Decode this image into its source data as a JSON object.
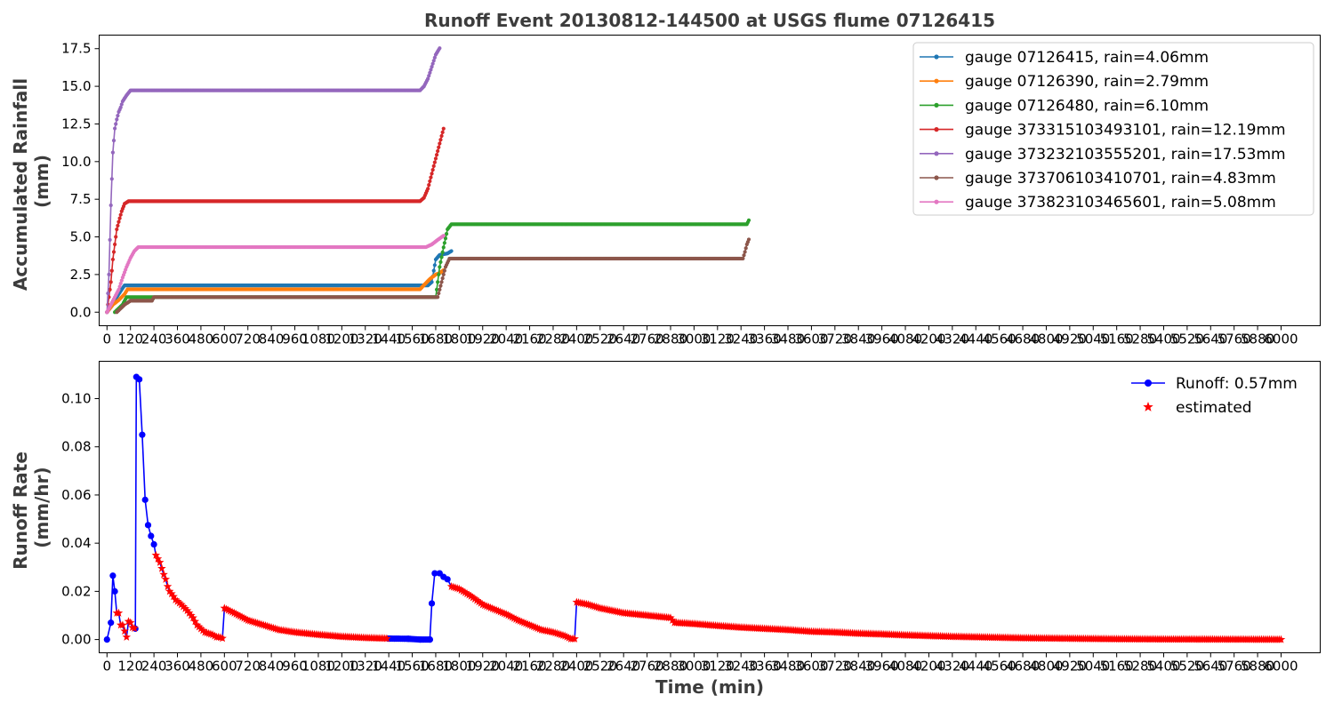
{
  "figure": {
    "title": "Runoff Event 20130812-144500 at USGS flume 07126415",
    "top_ylabel_line1": "Accumulated Rainfall",
    "top_ylabel_line2": "(mm)",
    "bottom_ylabel_line1": "Runoff Rate",
    "bottom_ylabel_line2": "(mm/hr)",
    "xlabel": "Time (min)"
  },
  "chart_data": [
    {
      "type": "line",
      "title": "Runoff Event 20130812-144500 at USGS flume 07126415",
      "xlabel": "",
      "ylabel": "Accumulated Rainfall (mm)",
      "xlim": [
        -40,
        6200
      ],
      "ylim": [
        -0.9,
        18.4
      ],
      "xticks": [
        0,
        120,
        240,
        360,
        480,
        600,
        720,
        840,
        960,
        1080,
        1200,
        1320,
        1440,
        1560,
        1680,
        1800,
        1920,
        2040,
        2160,
        2280,
        2400,
        2520,
        2640,
        2760,
        2880,
        3000,
        3120,
        3240,
        3360,
        3480,
        3600,
        3720,
        3840,
        3960,
        4080,
        4200,
        4320,
        4440,
        4560,
        4680,
        4800,
        4920,
        5040,
        5160,
        5280,
        5400,
        5520,
        5640,
        5760,
        5880,
        6000
      ],
      "yticks": [
        "0.0",
        "2.5",
        "5.0",
        "7.5",
        "10.0",
        "12.5",
        "15.0",
        "17.5"
      ],
      "grid": false,
      "legend_position": "top-right",
      "series": [
        {
          "name": "gauge 07126415, rain=4.06mm",
          "color": "#1f77b4",
          "points": [
            [
              0,
              0
            ],
            [
              15,
              0.25
            ],
            [
              30,
              0.5
            ],
            [
              50,
              1.0
            ],
            [
              75,
              1.5
            ],
            [
              90,
              1.78
            ],
            [
              1640,
              1.78
            ],
            [
              1660,
              2.0
            ],
            [
              1680,
              3.5
            ],
            [
              1700,
              3.8
            ],
            [
              1740,
              3.9
            ],
            [
              1760,
              4.06
            ]
          ]
        },
        {
          "name": "gauge 07126390, rain=2.79mm",
          "color": "#ff7f0e",
          "points": [
            [
              0,
              0
            ],
            [
              30,
              0.5
            ],
            [
              60,
              0.8
            ],
            [
              90,
              1.2
            ],
            [
              105,
              1.52
            ],
            [
              1600,
              1.52
            ],
            [
              1620,
              1.8
            ],
            [
              1650,
              2.2
            ],
            [
              1680,
              2.5
            ],
            [
              1700,
              2.6
            ],
            [
              1720,
              2.79
            ]
          ]
        },
        {
          "name": "gauge 07126480, rain=6.10mm",
          "color": "#2ca02c",
          "points": [
            [
              40,
              0
            ],
            [
              60,
              0.25
            ],
            [
              80,
              0.5
            ],
            [
              100,
              1.0
            ],
            [
              1680,
              1.0
            ],
            [
              1700,
              3.0
            ],
            [
              1720,
              4.3
            ],
            [
              1740,
              5.5
            ],
            [
              1760,
              5.84
            ],
            [
              3270,
              5.84
            ],
            [
              3280,
              6.1
            ]
          ]
        },
        {
          "name": "gauge 373315103493101, rain=12.19mm",
          "color": "#d62728",
          "points": [
            [
              0,
              0
            ],
            [
              10,
              1.0
            ],
            [
              20,
              2.0
            ],
            [
              30,
              3.5
            ],
            [
              40,
              4.5
            ],
            [
              50,
              5.5
            ],
            [
              60,
              6.0
            ],
            [
              75,
              6.7
            ],
            [
              90,
              7.2
            ],
            [
              110,
              7.37
            ],
            [
              1600,
              7.37
            ],
            [
              1620,
              7.6
            ],
            [
              1640,
              8.2
            ],
            [
              1660,
              9.2
            ],
            [
              1680,
              10.2
            ],
            [
              1700,
              11.2
            ],
            [
              1710,
              11.7
            ],
            [
              1720,
              12.19
            ]
          ]
        },
        {
          "name": "gauge 373232103555201, rain=17.53mm",
          "color": "#9467bd",
          "points": [
            [
              0,
              0
            ],
            [
              10,
              2.5
            ],
            [
              20,
              7.1
            ],
            [
              30,
              10.6
            ],
            [
              40,
              12.2
            ],
            [
              50,
              12.8
            ],
            [
              60,
              13.3
            ],
            [
              70,
              13.6
            ],
            [
              80,
              14.0
            ],
            [
              100,
              14.4
            ],
            [
              120,
              14.73
            ],
            [
              1600,
              14.73
            ],
            [
              1620,
              15.0
            ],
            [
              1640,
              15.5
            ],
            [
              1660,
              16.3
            ],
            [
              1680,
              17.1
            ],
            [
              1700,
              17.53
            ]
          ]
        },
        {
          "name": "gauge 373706103410701, rain=4.83mm",
          "color": "#8c564b",
          "points": [
            [
              50,
              0
            ],
            [
              70,
              0.25
            ],
            [
              90,
              0.5
            ],
            [
              120,
              0.76
            ],
            [
              230,
              0.76
            ],
            [
              240,
              1.0
            ],
            [
              1690,
              1.0
            ],
            [
              1710,
              2.0
            ],
            [
              1730,
              3.0
            ],
            [
              1750,
              3.56
            ],
            [
              3250,
              3.56
            ],
            [
              3260,
              4.0
            ],
            [
              3270,
              4.5
            ],
            [
              3280,
              4.83
            ]
          ]
        },
        {
          "name": "gauge 373823103465601, rain=5.08mm",
          "color": "#e377c2",
          "points": [
            [
              0,
              0
            ],
            [
              20,
              0.5
            ],
            [
              40,
              1.0
            ],
            [
              60,
              1.5
            ],
            [
              80,
              2.3
            ],
            [
              100,
              3.0
            ],
            [
              120,
              3.6
            ],
            [
              140,
              4.06
            ],
            [
              160,
              4.32
            ],
            [
              1630,
              4.32
            ],
            [
              1660,
              4.5
            ],
            [
              1690,
              4.8
            ],
            [
              1720,
              5.08
            ]
          ]
        }
      ]
    },
    {
      "type": "line",
      "title": "",
      "xlabel": "Time (min)",
      "ylabel": "Runoff Rate (mm/hr)",
      "xlim": [
        -40,
        6200
      ],
      "ylim": [
        -0.0055,
        0.1155
      ],
      "xticks": [
        0,
        120,
        240,
        360,
        480,
        600,
        720,
        840,
        960,
        1080,
        1200,
        1320,
        1440,
        1560,
        1680,
        1800,
        1920,
        2040,
        2160,
        2280,
        2400,
        2520,
        2640,
        2760,
        2880,
        3000,
        3120,
        3240,
        3360,
        3480,
        3600,
        3720,
        3840,
        3960,
        4080,
        4200,
        4320,
        4440,
        4560,
        4680,
        4800,
        4920,
        5040,
        5160,
        5280,
        5400,
        5520,
        5640,
        5760,
        5880,
        6000
      ],
      "yticks": [
        "0.00",
        "0.02",
        "0.04",
        "0.06",
        "0.08",
        "0.10"
      ],
      "grid": false,
      "legend_position": "top-right",
      "legend": [
        {
          "name": "Runoff: 0.57mm",
          "color": "#0000ff",
          "marker": "circle-line"
        },
        {
          "name": "estimated",
          "color": "#ff0000",
          "marker": "star"
        }
      ],
      "runoff_points": [
        [
          0,
          0
        ],
        [
          20,
          0.007
        ],
        [
          30,
          0.0265
        ],
        [
          40,
          0.02
        ],
        [
          50,
          0.011
        ],
        [
          60,
          0.011
        ],
        [
          70,
          0.006
        ],
        [
          80,
          0.006
        ],
        [
          90,
          0.0035
        ],
        [
          100,
          0.001
        ],
        [
          110,
          0.0075
        ],
        [
          120,
          0.007
        ],
        [
          130,
          0.005
        ],
        [
          145,
          0.0045
        ],
        [
          150,
          0.109
        ],
        [
          165,
          0.108
        ],
        [
          180,
          0.085
        ],
        [
          195,
          0.058
        ],
        [
          210,
          0.0475
        ],
        [
          225,
          0.043
        ],
        [
          240,
          0.0395
        ],
        [
          250,
          0.035
        ],
        [
          260,
          0.0335
        ],
        [
          270,
          0.032
        ],
        [
          280,
          0.0295
        ],
        [
          290,
          0.027
        ],
        [
          300,
          0.025
        ],
        [
          310,
          0.022
        ],
        [
          320,
          0.02
        ],
        [
          335,
          0.0185
        ],
        [
          350,
          0.0165
        ],
        [
          380,
          0.0145
        ],
        [
          410,
          0.012
        ],
        [
          440,
          0.009
        ],
        [
          460,
          0.006
        ],
        [
          480,
          0.0045
        ],
        [
          500,
          0.003
        ],
        [
          520,
          0.0025
        ],
        [
          540,
          0.002
        ],
        [
          560,
          0.001
        ],
        [
          575,
          0.001
        ],
        [
          590,
          0.0005
        ],
        [
          600,
          0.013
        ],
        [
          650,
          0.011
        ],
        [
          720,
          0.008
        ],
        [
          800,
          0.006
        ],
        [
          880,
          0.004
        ],
        [
          960,
          0.003
        ],
        [
          1080,
          0.002
        ],
        [
          1200,
          0.0012
        ],
        [
          1320,
          0.0007
        ],
        [
          1440,
          0.0004
        ],
        [
          1540,
          0.0003
        ],
        [
          1600,
          0
        ],
        [
          1650,
          0
        ],
        [
          1660,
          0.015
        ],
        [
          1675,
          0.0275
        ],
        [
          1700,
          0.0275
        ],
        [
          1720,
          0.026
        ],
        [
          1740,
          0.025
        ],
        [
          1760,
          0.022
        ],
        [
          1800,
          0.021
        ],
        [
          1860,
          0.018
        ],
        [
          1920,
          0.0145
        ],
        [
          1980,
          0.0125
        ],
        [
          2040,
          0.0105
        ],
        [
          2100,
          0.008
        ],
        [
          2160,
          0.006
        ],
        [
          2220,
          0.004
        ],
        [
          2280,
          0.003
        ],
        [
          2340,
          0.0015
        ],
        [
          2370,
          0.0003
        ],
        [
          2390,
          0.0003
        ],
        [
          2400,
          0.0155
        ],
        [
          2460,
          0.0145
        ],
        [
          2520,
          0.013
        ],
        [
          2640,
          0.011
        ],
        [
          2760,
          0.01
        ],
        [
          2880,
          0.009
        ],
        [
          2900,
          0.007
        ],
        [
          3000,
          0.0065
        ],
        [
          3120,
          0.0057
        ],
        [
          3240,
          0.005
        ],
        [
          3360,
          0.0045
        ],
        [
          3480,
          0.004
        ],
        [
          3600,
          0.0033
        ],
        [
          3720,
          0.003
        ],
        [
          3840,
          0.0025
        ],
        [
          3960,
          0.0022
        ],
        [
          4080,
          0.0018
        ],
        [
          4200,
          0.0015
        ],
        [
          4320,
          0.0012
        ],
        [
          4440,
          0.001
        ],
        [
          4560,
          0.0008
        ],
        [
          4680,
          0.0006
        ],
        [
          4800,
          0.0005
        ],
        [
          4920,
          0.0004
        ],
        [
          5040,
          0.0003
        ],
        [
          5160,
          0.0002
        ],
        [
          5400,
          0.0001
        ],
        [
          5700,
          5e-05
        ],
        [
          6000,
          0
        ]
      ],
      "observed_ranges": [
        [
          0,
          40
        ],
        [
          145,
          240
        ],
        [
          1440,
          1750
        ]
      ],
      "estimated_marker_step_min": 10
    }
  ]
}
